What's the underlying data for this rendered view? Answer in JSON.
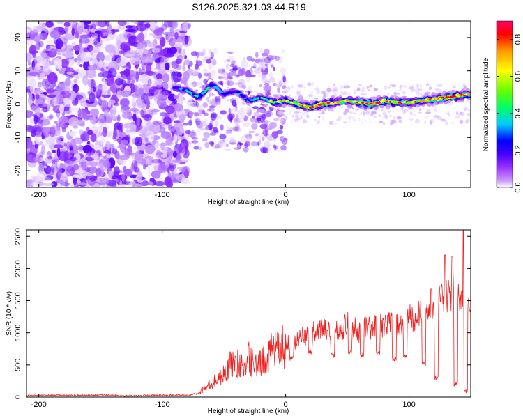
{
  "title": "S126.2025.321.03.44.R19",
  "chart_data": [
    {
      "type": "heatmap",
      "xlabel": "Height of straight line (km)",
      "ylabel": "Frequency (Hz)",
      "xlim": [
        -210,
        150
      ],
      "ylim": [
        -25,
        25
      ],
      "x_ticks": [
        -200,
        -100,
        0,
        100
      ],
      "y_ticks": [
        -20,
        -10,
        0,
        10,
        20
      ],
      "colorbar": {
        "label": "Normalized spectral amplitude",
        "range": [
          0.0,
          0.9
        ],
        "ticks": [
          0.0,
          0.2,
          0.4,
          0.6,
          0.8
        ],
        "colormap": [
          "#ffffff",
          "#cc99ff",
          "#9933ff",
          "#6600ff",
          "#0000ff",
          "#00ccff",
          "#00ff66",
          "#66ff00",
          "#ffff00",
          "#ff9900",
          "#ff0000",
          "#ff0066"
        ]
      },
      "noise_region_end_km": -80,
      "ridge": {
        "x": [
          -90,
          -80,
          -70,
          -60,
          -50,
          -40,
          -30,
          -20,
          -10,
          0,
          10,
          20,
          30,
          40,
          50,
          60,
          70,
          80,
          90,
          100,
          110,
          120,
          130,
          140,
          150
        ],
        "freq": [
          5,
          4,
          2,
          6,
          3,
          4,
          1,
          2,
          0.5,
          1,
          0,
          -1,
          0,
          0.5,
          1,
          0.5,
          0,
          1,
          0.5,
          0.5,
          1,
          1.5,
          2,
          2.5,
          3
        ],
        "amplitude": [
          0.35,
          0.4,
          0.45,
          0.4,
          0.35,
          0.3,
          0.4,
          0.45,
          0.55,
          0.6,
          0.65,
          0.75,
          0.8,
          0.75,
          0.6,
          0.7,
          0.8,
          0.75,
          0.7,
          0.65,
          0.7,
          0.75,
          0.8,
          0.75,
          0.7
        ]
      }
    },
    {
      "type": "line",
      "xlabel": "Height of straight line (km)",
      "ylabel": "SNR (10 * v/v)",
      "xlim": [
        -210,
        150
      ],
      "ylim": [
        0,
        2600
      ],
      "x_ticks": [
        -200,
        -100,
        0,
        100
      ],
      "y_ticks": [
        0,
        500,
        1000,
        1500,
        2000,
        2500
      ],
      "color": "#ee2222",
      "series": [
        {
          "name": "SNR",
          "x": [
            -210,
            -190,
            -170,
            -150,
            -130,
            -110,
            -90,
            -80,
            -70,
            -65,
            -60,
            -55,
            -50,
            -45,
            -40,
            -35,
            -30,
            -25,
            -20,
            -15,
            -10,
            -5,
            0,
            5,
            10,
            15,
            20,
            25,
            30,
            35,
            40,
            45,
            50,
            55,
            60,
            65,
            70,
            75,
            80,
            85,
            90,
            95,
            100,
            105,
            110,
            115,
            120,
            125,
            130,
            135,
            140,
            145,
            150
          ],
          "y": [
            20,
            30,
            25,
            35,
            20,
            25,
            30,
            25,
            60,
            150,
            200,
            300,
            350,
            500,
            550,
            450,
            600,
            550,
            500,
            650,
            700,
            750,
            800,
            850,
            900,
            950,
            1000,
            1050,
            1050,
            1000,
            1100,
            1050,
            1150,
            1100,
            1000,
            1100,
            1050,
            1150,
            1100,
            1200,
            1150,
            1100,
            1250,
            1200,
            1350,
            1300,
            1400,
            1500,
            1550,
            1600,
            1650,
            1400,
            1300
          ],
          "dips": [
            {
              "x": 5,
              "y": 600
            },
            {
              "x": 20,
              "y": 700
            },
            {
              "x": 38,
              "y": 650
            },
            {
              "x": 52,
              "y": 700
            },
            {
              "x": 62,
              "y": 650
            },
            {
              "x": 75,
              "y": 700
            },
            {
              "x": 88,
              "y": 600
            },
            {
              "x": 97,
              "y": 650
            },
            {
              "x": 112,
              "y": 500
            },
            {
              "x": 122,
              "y": 300
            },
            {
              "x": 138,
              "y": 200
            },
            {
              "x": 146,
              "y": 100
            }
          ],
          "spikes": [
            {
              "x": 118,
              "y": 1680
            },
            {
              "x": 129,
              "y": 2210
            },
            {
              "x": 135,
              "y": 2190
            },
            {
              "x": 144,
              "y": 2600
            }
          ]
        }
      ]
    }
  ]
}
